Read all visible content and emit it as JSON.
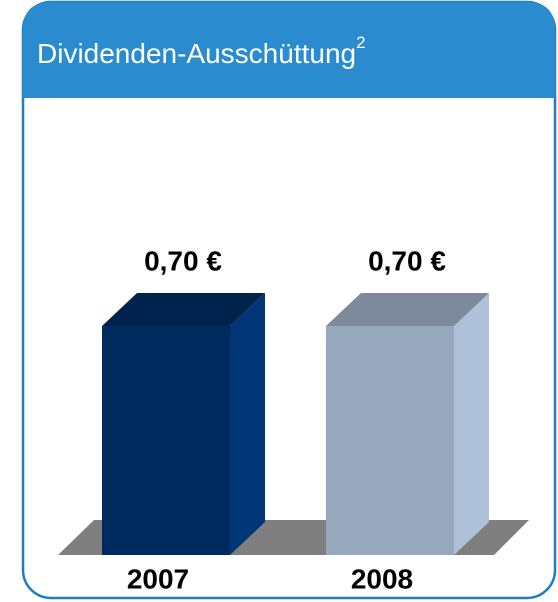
{
  "chart_data": {
    "type": "bar3d",
    "title": "Dividenden-Ausschüttung",
    "title_note": "2",
    "categories": [
      "2007",
      "2008"
    ],
    "values": [
      0.7,
      0.7
    ],
    "value_labels": [
      "0,70 €",
      "0,70 €"
    ],
    "colors": [
      "#002b5e",
      "#97a8bd"
    ]
  }
}
